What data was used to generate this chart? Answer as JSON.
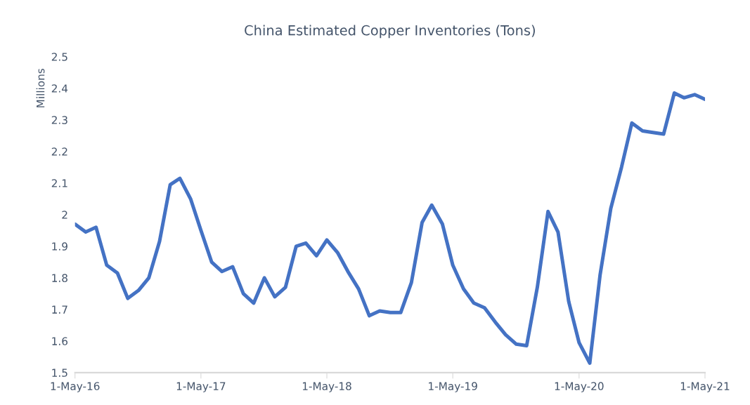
{
  "chart_data": {
    "type": "line",
    "title": "China Estimated Copper Inventories (Tons)",
    "ylabel": "Millions",
    "x": [
      "2016-05",
      "2016-06",
      "2016-07",
      "2016-08",
      "2016-09",
      "2016-10",
      "2016-11",
      "2016-12",
      "2017-01",
      "2017-02",
      "2017-03",
      "2017-04",
      "2017-05",
      "2017-06",
      "2017-07",
      "2017-08",
      "2017-09",
      "2017-10",
      "2017-11",
      "2017-12",
      "2018-01",
      "2018-02",
      "2018-03",
      "2018-04",
      "2018-05",
      "2018-06",
      "2018-07",
      "2018-08",
      "2018-09",
      "2018-10",
      "2018-11",
      "2018-12",
      "2019-01",
      "2019-02",
      "2019-03",
      "2019-04",
      "2019-05",
      "2019-06",
      "2019-07",
      "2019-08",
      "2019-09",
      "2019-10",
      "2019-11",
      "2019-12",
      "2020-01",
      "2020-02",
      "2020-03",
      "2020-04",
      "2020-05",
      "2020-06",
      "2020-07",
      "2020-08",
      "2020-09",
      "2020-10",
      "2020-11",
      "2020-12",
      "2021-01",
      "2021-02",
      "2021-03",
      "2021-04",
      "2021-05"
    ],
    "series": [
      {
        "color": "#4472c4",
        "values": [
          1.97,
          1.945,
          1.96,
          1.84,
          1.815,
          1.735,
          1.76,
          1.8,
          1.915,
          2.095,
          2.115,
          2.05,
          1.95,
          1.85,
          1.82,
          1.835,
          1.75,
          1.72,
          1.8,
          1.74,
          1.77,
          1.9,
          1.91,
          1.87,
          1.92,
          1.88,
          1.82,
          1.765,
          1.68,
          1.695,
          1.69,
          1.69,
          1.785,
          1.975,
          2.03,
          1.97,
          1.84,
          1.765,
          1.72,
          1.705,
          1.66,
          1.62,
          1.59,
          1.585,
          1.77,
          2.01,
          1.945,
          1.725,
          1.595,
          1.53,
          1.81,
          2.02,
          2.15,
          2.29,
          2.265,
          2.26,
          2.255,
          2.385,
          2.37,
          2.38,
          2.365
        ]
      }
    ],
    "xlim": [
      "2016-05",
      "2021-05"
    ],
    "xticks": [
      {
        "value": "2016-05-01",
        "label": "1-May-16"
      },
      {
        "value": "2017-05-01",
        "label": "1-May-17"
      },
      {
        "value": "2018-05-01",
        "label": "1-May-18"
      },
      {
        "value": "2019-05-01",
        "label": "1-May-19"
      },
      {
        "value": "2020-05-01",
        "label": "1-May-20"
      },
      {
        "value": "2021-05-01",
        "label": "1-May-21"
      }
    ],
    "ylim": [
      1.5,
      2.5
    ],
    "yticks": [
      1.5,
      1.6,
      1.7,
      1.8,
      1.9,
      {
        "value": 2,
        "label": "2"
      },
      2.1,
      2.2,
      2.3,
      2.4,
      2.5
    ],
    "grid": false,
    "line_style": "solid"
  }
}
